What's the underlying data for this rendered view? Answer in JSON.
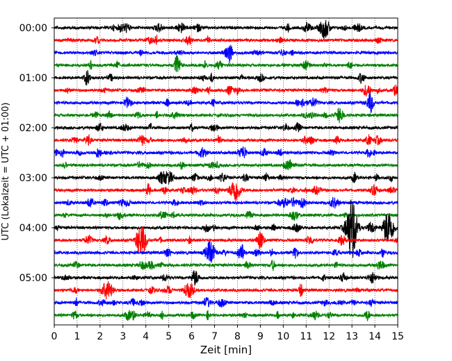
{
  "chart_data": {
    "type": "line",
    "plot_kind": "helicorder",
    "xlabel": "Zeit  [min]",
    "ylabel": "UTC (Lokalzeit = UTC + 01:00)",
    "x_ticks": [
      "0",
      "1",
      "2",
      "3",
      "4",
      "5",
      "6",
      "7",
      "8",
      "9",
      "10",
      "11",
      "12",
      "13",
      "14",
      "15"
    ],
    "xlim": [
      0,
      15
    ],
    "y_tick_labels": [
      "00:00",
      "01:00",
      "02:00",
      "03:00",
      "04:00",
      "05:00"
    ],
    "trace_interval_min": 15,
    "trace_count": 24,
    "color_cycle": [
      "#000000",
      "#ff0000",
      "#0000ff",
      "#008000"
    ],
    "vertical_grid": "dotted",
    "events": [
      {
        "trace": 16,
        "minute": 13.0,
        "amplitude": 3.5
      },
      {
        "trace": 16,
        "minute": 14.6,
        "amplitude": 2.0
      },
      {
        "trace": 17,
        "minute": 3.8,
        "amplitude": 1.7
      },
      {
        "trace": 13,
        "minute": 7.9,
        "amplitude": 1.3
      },
      {
        "trace": 18,
        "minute": 6.8,
        "amplitude": 1.2
      },
      {
        "trace": 0,
        "minute": 11.8,
        "amplitude": 1.1
      },
      {
        "trace": 21,
        "minute": 2.3,
        "amplitude": 1.2
      }
    ]
  }
}
